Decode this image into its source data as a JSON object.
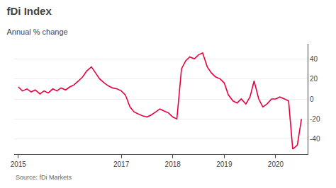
{
  "chart_data": {
    "type": "line",
    "title": "fDi Index",
    "subtitle": "Annual % change",
    "annotations": [
      "Source: fDi Markets"
    ],
    "x": [
      2015.0,
      2015.08,
      2015.17,
      2015.25,
      2015.33,
      2015.42,
      2015.5,
      2015.58,
      2015.67,
      2015.75,
      2015.83,
      2015.92,
      2016.0,
      2016.08,
      2016.17,
      2016.25,
      2016.33,
      2016.42,
      2016.5,
      2016.58,
      2016.67,
      2016.75,
      2016.83,
      2016.92,
      2017.0,
      2017.08,
      2017.17,
      2017.25,
      2017.33,
      2017.42,
      2017.5,
      2017.58,
      2017.67,
      2017.75,
      2017.83,
      2017.92,
      2018.0,
      2018.08,
      2018.17,
      2018.25,
      2018.33,
      2018.42,
      2018.5,
      2018.58,
      2018.67,
      2018.75,
      2018.83,
      2018.92,
      2019.0,
      2019.08,
      2019.17,
      2019.25,
      2019.33,
      2019.42,
      2019.5,
      2019.58,
      2019.67,
      2019.75,
      2019.83,
      2019.92,
      2020.0,
      2020.08,
      2020.17,
      2020.25,
      2020.33,
      2020.42,
      2020.5
    ],
    "values": [
      12,
      8,
      10,
      7,
      9,
      5,
      8,
      6,
      10,
      8,
      11,
      9,
      12,
      14,
      18,
      22,
      28,
      32,
      26,
      20,
      16,
      13,
      11,
      10,
      8,
      4,
      -8,
      -13,
      -15,
      -17,
      -18,
      -16,
      -13,
      -10,
      -12,
      -14,
      -18,
      -20,
      30,
      38,
      42,
      40,
      44,
      46,
      32,
      26,
      22,
      20,
      16,
      4,
      -2,
      -4,
      0,
      -5,
      2,
      18,
      0,
      -8,
      -5,
      0,
      0,
      2,
      0,
      -2,
      -50,
      -46,
      -20
    ],
    "color": "#e8003d",
    "xlim": [
      2014.92,
      2020.62
    ],
    "xticks": [
      2015,
      2017,
      2018,
      2019,
      2020
    ],
    "ylim": [
      -55,
      55
    ],
    "yticks": [
      -40,
      -20,
      0,
      20,
      40
    ],
    "grid": true
  }
}
